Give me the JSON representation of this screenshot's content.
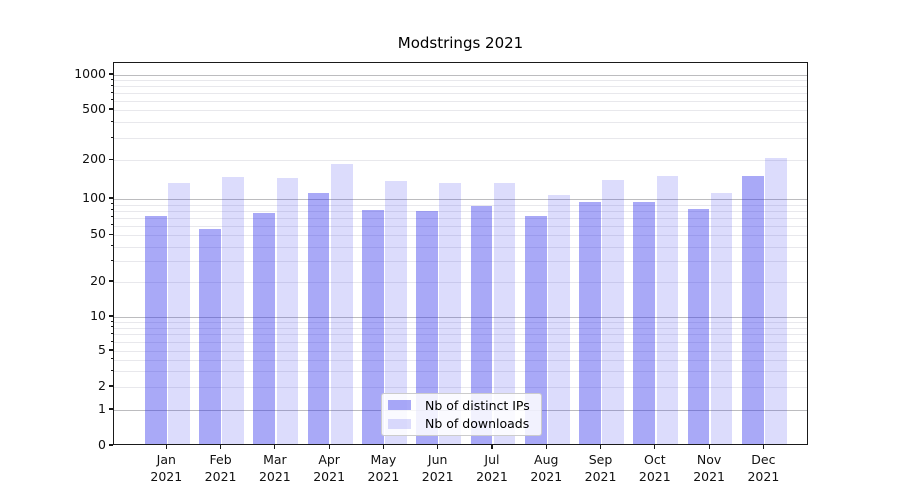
{
  "chart_data": {
    "type": "bar",
    "title": "Modstrings 2021",
    "year": "2021",
    "categories": [
      "Jan",
      "Feb",
      "Mar",
      "Apr",
      "May",
      "Jun",
      "Jul",
      "Aug",
      "Sep",
      "Oct",
      "Nov",
      "Dec"
    ],
    "series": [
      {
        "name": "Nb of distinct IPs",
        "color": "rgba(45,45,235,0.41)",
        "color_hex_on_white": "#a8a8f3",
        "values": [
          72,
          56,
          77,
          112,
          81,
          80,
          88,
          72,
          95,
          94,
          83,
          150
        ]
      },
      {
        "name": "Nb of downloads",
        "color": "rgba(45,45,235,0.17)",
        "color_hex_on_white": "#dcdcfa",
        "values": [
          134,
          148,
          145,
          188,
          137,
          134,
          134,
          108,
          140,
          152,
          112,
          210
        ]
      }
    ],
    "xlabel": "",
    "ylabel": "",
    "yscale": "symlog",
    "yticks": [
      0,
      1,
      2,
      5,
      10,
      20,
      50,
      100,
      200,
      500,
      1000
    ],
    "ylim": [
      0,
      1150
    ],
    "grid": "both",
    "grid_major_color": "#bcbcbf",
    "grid_minor_color": "#e8e8ec",
    "legend_position": "lower center",
    "legend_bg": "rgba(255,255,255,0.85)"
  }
}
